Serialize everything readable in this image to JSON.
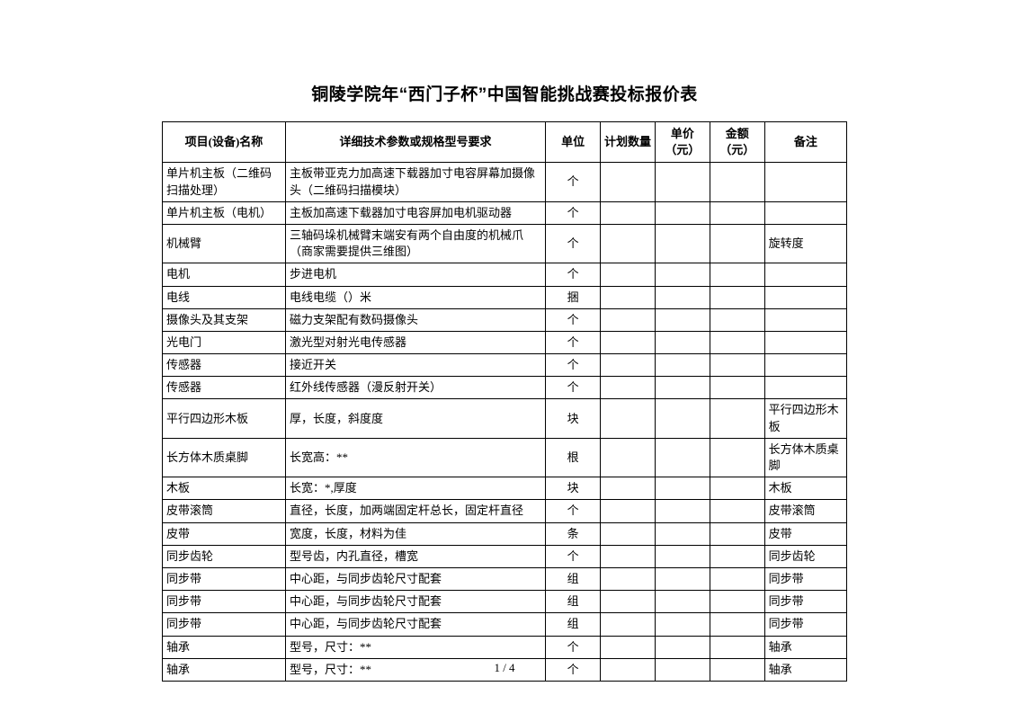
{
  "title": "铜陵学院年“西门子杯”中国智能挑战赛投标报价表",
  "footer": "1 / 4",
  "columns": {
    "name": "项目(设备)名称",
    "spec": "详细技术参数或规格型号要求",
    "unit": "单位",
    "qty": "计划数量",
    "uprice": "单价（元）",
    "amount": "金额（元）",
    "remark": "备注"
  },
  "rows": [
    {
      "name": "单片机主板（二维码扫描处理）",
      "spec": "主板带亚克力加高速下载器加寸电容屏幕加摄像头（二维码扫描模块）",
      "unit": "个",
      "qty": "",
      "uprice": "",
      "amount": "",
      "remark": ""
    },
    {
      "name": "单片机主板（电机）",
      "spec": "主板加高速下载器加寸电容屏加电机驱动器",
      "unit": "个",
      "qty": "",
      "uprice": "",
      "amount": "",
      "remark": ""
    },
    {
      "name": "机械臂",
      "spec": "三轴码垛机械臂末端安有两个自由度的机械爪（商家需要提供三维图）",
      "unit": "个",
      "qty": "",
      "uprice": "",
      "amount": "",
      "remark": "旋转度"
    },
    {
      "name": "电机",
      "spec": "步进电机",
      "unit": "个",
      "qty": "",
      "uprice": "",
      "amount": "",
      "remark": ""
    },
    {
      "name": "电线",
      "spec": "电线电缆（）米",
      "unit": "捆",
      "qty": "",
      "uprice": "",
      "amount": "",
      "remark": ""
    },
    {
      "name": "摄像头及其支架",
      "spec": "磁力支架配有数码摄像头",
      "unit": "个",
      "qty": "",
      "uprice": "",
      "amount": "",
      "remark": ""
    },
    {
      "name": "光电门",
      "spec": "激光型对射光电传感器",
      "unit": "个",
      "qty": "",
      "uprice": "",
      "amount": "",
      "remark": ""
    },
    {
      "name": "传感器",
      "spec": "接近开关",
      "unit": "个",
      "qty": "",
      "uprice": "",
      "amount": "",
      "remark": ""
    },
    {
      "name": "传感器",
      "spec": "红外线传感器（漫反射开关）",
      "unit": "个",
      "qty": "",
      "uprice": "",
      "amount": "",
      "remark": ""
    },
    {
      "name": "平行四边形木板",
      "spec": "厚，长度，斜度度",
      "unit": "块",
      "qty": "",
      "uprice": "",
      "amount": "",
      "remark": "平行四边形木板"
    },
    {
      "name": "长方体木质桌脚",
      "spec": "长宽高：**",
      "unit": "根",
      "qty": "",
      "uprice": "",
      "amount": "",
      "remark": "长方体木质桌脚"
    },
    {
      "name": "木板",
      "spec": "长宽：*,厚度",
      "unit": "块",
      "qty": "",
      "uprice": "",
      "amount": "",
      "remark": "木板"
    },
    {
      "name": "皮带滚筒",
      "spec": "直径，长度，加两端固定杆总长，固定杆直径",
      "unit": "个",
      "qty": "",
      "uprice": "",
      "amount": "",
      "remark": "皮带滚筒"
    },
    {
      "name": "皮带",
      "spec": "宽度，长度，材料为佳",
      "unit": "条",
      "qty": "",
      "uprice": "",
      "amount": "",
      "remark": "皮带"
    },
    {
      "name": "同步齿轮",
      "spec": "型号齿，内孔直径，槽宽",
      "unit": "个",
      "qty": "",
      "uprice": "",
      "amount": "",
      "remark": "同步齿轮"
    },
    {
      "name": "同步带",
      "spec": "中心距，与同步齿轮尺寸配套",
      "unit": "组",
      "qty": "",
      "uprice": "",
      "amount": "",
      "remark": "同步带"
    },
    {
      "name": "同步带",
      "spec": "中心距，与同步齿轮尺寸配套",
      "unit": "组",
      "qty": "",
      "uprice": "",
      "amount": "",
      "remark": "同步带"
    },
    {
      "name": "同步带",
      "spec": "中心距，与同步齿轮尺寸配套",
      "unit": "组",
      "qty": "",
      "uprice": "",
      "amount": "",
      "remark": "同步带"
    },
    {
      "name": "轴承",
      "spec": "型号，尺寸：**",
      "unit": "个",
      "qty": "",
      "uprice": "",
      "amount": "",
      "remark": "轴承"
    },
    {
      "name": "轴承",
      "spec": "型号，尺寸：**",
      "unit": "个",
      "qty": "",
      "uprice": "",
      "amount": "",
      "remark": "轴承"
    }
  ]
}
